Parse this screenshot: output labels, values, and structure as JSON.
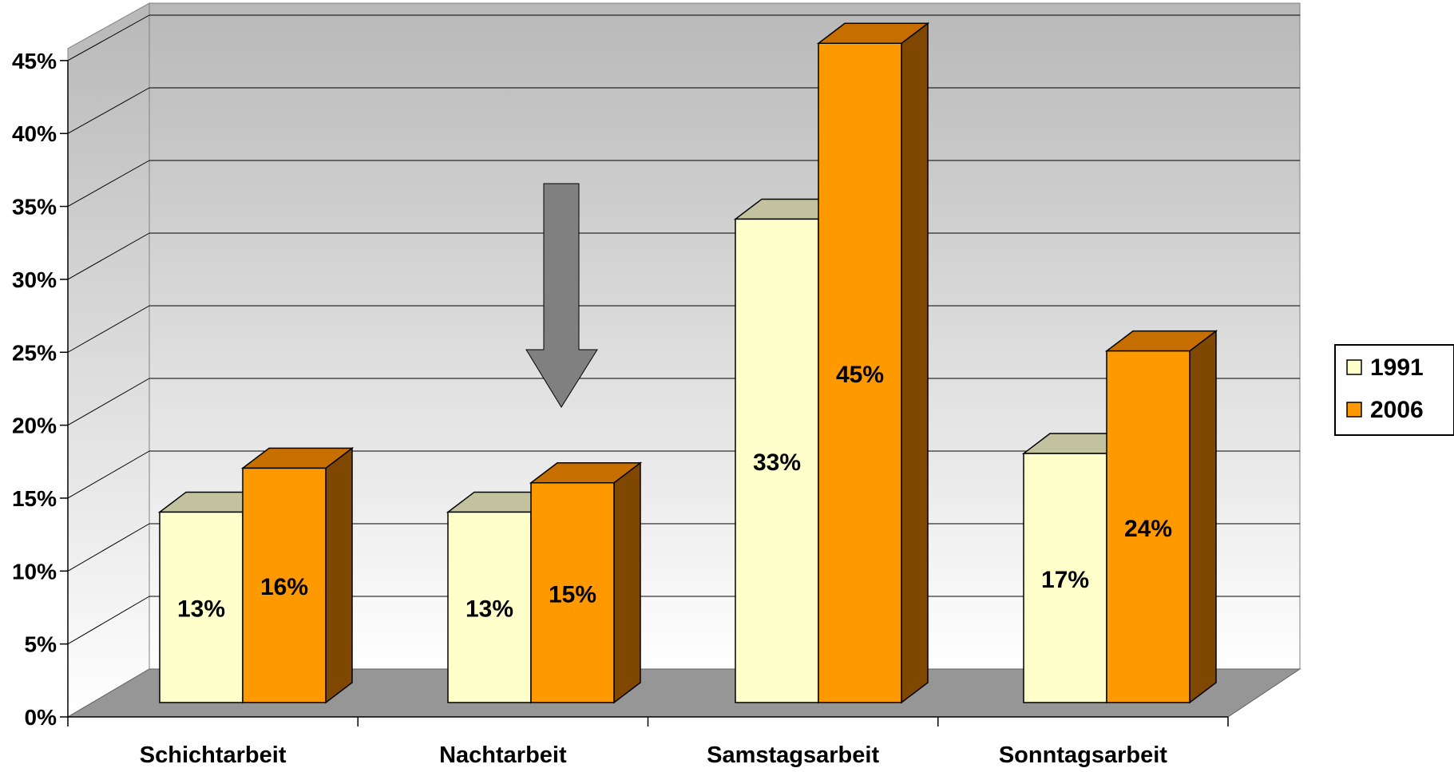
{
  "chart_data": {
    "type": "bar",
    "categories": [
      "Schichtarbeit",
      "Nachtarbeit",
      "Samstagsarbeit",
      "Sonntagsarbeit"
    ],
    "series": [
      {
        "name": "1991",
        "values": [
          13,
          13,
          33,
          17
        ],
        "labels": [
          "13%",
          "13%",
          "33%",
          "17%"
        ]
      },
      {
        "name": "2006",
        "values": [
          16,
          15,
          45,
          24
        ],
        "labels": [
          "16%",
          "15%",
          "45%",
          "24%"
        ]
      }
    ],
    "ylim": [
      0,
      45
    ],
    "yticks": [
      "0%",
      "5%",
      "10%",
      "15%",
      "20%",
      "25%",
      "30%",
      "35%",
      "40%",
      "45%"
    ],
    "legend": "right",
    "grid": true,
    "annotation": "down-arrow",
    "colors": {
      "s1991_front": "#FFFFCC",
      "s1991_top": "#C2C29E",
      "s2006_front": "#FF9900",
      "s2006_top": "#C66F00",
      "s2006_side": "#7F4700",
      "arrow": "#808080",
      "floor": "#969696"
    }
  }
}
